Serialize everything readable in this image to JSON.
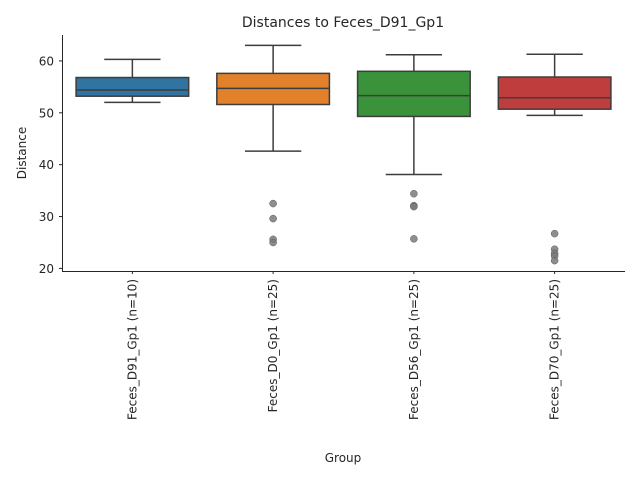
{
  "chart_data": {
    "type": "box",
    "title": "Distances to Feces_D91_Gp1",
    "xlabel": "Group",
    "ylabel": "Distance",
    "ylim": [
      19.5,
      65
    ],
    "yticks": [
      20,
      30,
      40,
      50,
      60
    ],
    "grid": false,
    "categories": [
      "Feces_D91_Gp1 (n=10)",
      "Feces_D0_Gp1 (n=25)",
      "Feces_D56_Gp1 (n=25)",
      "Feces_D70_Gp1 (n=25)"
    ],
    "colors": [
      "#3274a1",
      "#e1812c",
      "#3a923a",
      "#c03d3e"
    ],
    "boxes": [
      {
        "whisker_low": 52.0,
        "q1": 53.2,
        "median": 54.4,
        "q3": 56.8,
        "whisker_high": 60.3,
        "outliers": []
      },
      {
        "whisker_low": 42.6,
        "q1": 51.6,
        "median": 54.7,
        "q3": 57.6,
        "whisker_high": 63.0,
        "outliers": [
          32.5,
          29.6,
          25.6,
          25.0
        ]
      },
      {
        "whisker_low": 38.1,
        "q1": 49.3,
        "median": 53.3,
        "q3": 58.0,
        "whisker_high": 61.2,
        "outliers": [
          34.4,
          32.1,
          31.9,
          25.7
        ]
      },
      {
        "whisker_low": 49.5,
        "q1": 50.7,
        "median": 52.9,
        "q3": 56.9,
        "whisker_high": 61.3,
        "outliers": [
          26.7,
          23.7,
          22.9,
          22.4,
          21.5
        ]
      }
    ]
  }
}
